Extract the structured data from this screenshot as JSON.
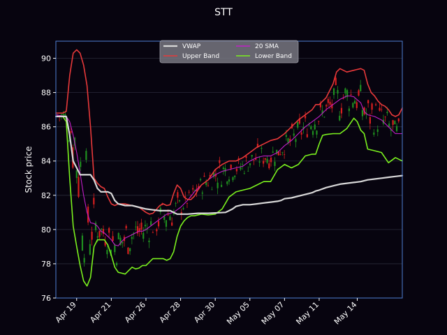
{
  "chart_data": {
    "type": "line",
    "title": "STT",
    "ylabel": "Stock price",
    "xlabel": "",
    "ylim": [
      76,
      91
    ],
    "yticks": [
      76,
      78,
      80,
      82,
      84,
      86,
      88,
      90
    ],
    "grid": "horizontal",
    "legend_position": "top-center",
    "background_color": "#07040f",
    "axes_edge_color": "#4f7fd6",
    "grid_color": "#2a2a3a",
    "candle_up_color": "#1f8f1f",
    "candle_down_color": "#d81f1f",
    "x_range": [
      0,
      100
    ],
    "xtick_positions": [
      6,
      16,
      26,
      36,
      46,
      56,
      66,
      76,
      87
    ],
    "xtick_labels": [
      "Apr 19",
      "Apr 21",
      "Apr 26",
      "Apr 28",
      "Apr 30",
      "May 05",
      "May 07",
      "May 11",
      "May 14"
    ],
    "series": [
      {
        "name": "VWAP",
        "color": "#d8d8d8",
        "width": 2.2,
        "x": [
          0,
          3,
          4,
          5,
          6,
          7,
          9,
          10,
          11,
          12,
          13,
          15,
          16,
          17,
          18,
          20,
          22,
          24,
          26,
          28,
          30,
          33,
          35,
          38,
          41,
          44,
          47,
          49,
          50,
          51,
          52,
          54,
          56,
          58,
          60,
          62,
          64,
          65,
          66,
          68,
          70,
          72,
          74,
          75,
          76,
          78,
          80,
          82,
          84,
          86,
          88,
          90,
          92,
          94,
          96,
          98,
          100
        ],
        "y": [
          86.6,
          86.6,
          85.5,
          84.0,
          83.6,
          83.2,
          83.2,
          83.2,
          82.9,
          82.4,
          82.2,
          82.2,
          82.1,
          81.7,
          81.5,
          81.4,
          81.4,
          81.3,
          81.2,
          81.15,
          81.1,
          81.1,
          80.9,
          80.9,
          80.95,
          80.95,
          80.98,
          81.0,
          81.1,
          81.2,
          81.35,
          81.45,
          81.45,
          81.5,
          81.55,
          81.6,
          81.65,
          81.7,
          81.8,
          81.85,
          81.95,
          82.05,
          82.15,
          82.25,
          82.3,
          82.45,
          82.55,
          82.65,
          82.7,
          82.75,
          82.8,
          82.9,
          82.95,
          83.0,
          83.05,
          83.1,
          83.15
        ]
      },
      {
        "name": "Upper Band",
        "color": "#e8393a",
        "width": 1.6,
        "x": [
          0,
          2,
          3,
          4,
          5,
          6,
          7,
          8,
          9,
          10,
          11,
          12,
          13,
          14,
          15,
          16,
          17,
          18,
          19,
          20,
          22,
          24,
          26,
          27,
          28,
          30,
          31,
          32,
          33,
          34,
          35,
          36,
          37,
          38,
          39,
          40,
          41,
          42,
          44,
          46,
          48,
          50,
          52,
          54,
          56,
          58,
          60,
          62,
          64,
          66,
          68,
          70,
          72,
          74,
          75,
          76,
          78,
          80,
          81,
          82,
          84,
          86,
          88,
          89,
          90,
          91,
          92,
          93,
          94,
          95,
          96,
          97,
          98,
          99,
          100
        ],
        "y": [
          86.8,
          86.8,
          86.9,
          89.0,
          90.3,
          90.5,
          90.3,
          89.6,
          88.4,
          86.0,
          83.0,
          82.7,
          82.5,
          82.4,
          81.9,
          81.5,
          81.4,
          81.5,
          81.5,
          81.5,
          81.4,
          81.3,
          81.0,
          80.9,
          80.95,
          81.4,
          81.5,
          81.4,
          81.45,
          82.1,
          82.6,
          82.4,
          81.9,
          81.75,
          81.75,
          81.95,
          82.3,
          82.6,
          82.9,
          83.5,
          83.8,
          84.0,
          84.0,
          84.2,
          84.5,
          84.8,
          85.0,
          85.2,
          85.3,
          85.6,
          86.0,
          86.4,
          86.7,
          87.0,
          87.3,
          87.3,
          87.7,
          88.5,
          89.2,
          89.4,
          89.2,
          89.3,
          89.4,
          89.3,
          88.5,
          88.0,
          87.8,
          87.5,
          87.3,
          87.2,
          87.0,
          86.7,
          86.6,
          86.7,
          87.1
        ]
      },
      {
        "name": "20 SMA",
        "color": "#c21ec8",
        "width": 1.1,
        "x": [
          0,
          3,
          4,
          5,
          6,
          7,
          8,
          9,
          10,
          11,
          12,
          13,
          14,
          15,
          16,
          17,
          18,
          19,
          20,
          21,
          22,
          23,
          24,
          25,
          26,
          28,
          30,
          32,
          34,
          36,
          38,
          40,
          42,
          44,
          46,
          48,
          50,
          52,
          54,
          56,
          58,
          60,
          62,
          64,
          66,
          68,
          70,
          72,
          74,
          76,
          78,
          80,
          82,
          84,
          85,
          86,
          88,
          89,
          90,
          92,
          94,
          96,
          98,
          100
        ],
        "y": [
          86.7,
          86.6,
          86.3,
          85.5,
          84.5,
          83.3,
          82.0,
          81.0,
          80.4,
          80.35,
          80.2,
          79.9,
          79.8,
          79.6,
          79.4,
          79.1,
          79.05,
          79.3,
          79.5,
          79.6,
          79.7,
          79.8,
          79.9,
          79.9,
          80.0,
          80.3,
          80.6,
          80.9,
          81.0,
          81.3,
          81.7,
          82.2,
          82.6,
          82.9,
          83.2,
          83.4,
          83.5,
          83.6,
          83.7,
          84.0,
          84.2,
          84.3,
          84.3,
          84.5,
          84.9,
          85.2,
          85.6,
          86.0,
          86.3,
          86.6,
          87.0,
          87.3,
          87.6,
          87.8,
          87.8,
          87.75,
          87.4,
          86.9,
          86.7,
          86.6,
          86.4,
          86.0,
          85.6,
          85.6
        ]
      },
      {
        "name": "Lower Band",
        "color": "#7bf21e",
        "width": 1.6,
        "x": [
          0,
          2,
          3,
          4,
          5,
          6,
          7,
          8,
          9,
          10,
          11,
          12,
          13,
          14,
          15,
          16,
          17,
          18,
          19,
          20,
          21,
          22,
          23,
          24,
          25,
          26,
          28,
          30,
          31,
          32,
          33,
          34,
          35,
          36,
          37,
          38,
          39,
          40,
          42,
          44,
          46,
          48,
          50,
          52,
          54,
          56,
          58,
          60,
          62,
          64,
          66,
          68,
          70,
          72,
          74,
          75,
          76,
          77,
          78,
          80,
          82,
          84,
          86,
          87,
          88,
          89,
          90,
          92,
          94,
          96,
          98,
          100
        ],
        "y": [
          86.6,
          86.6,
          86.3,
          83.0,
          80.2,
          79.0,
          77.9,
          77.0,
          76.7,
          77.2,
          79.0,
          79.4,
          79.4,
          79.4,
          79.1,
          78.5,
          77.8,
          77.5,
          77.45,
          77.4,
          77.6,
          77.8,
          77.7,
          77.75,
          77.9,
          77.9,
          78.3,
          78.3,
          78.3,
          78.2,
          78.3,
          78.7,
          79.6,
          80.2,
          80.5,
          80.7,
          80.8,
          80.8,
          80.9,
          80.85,
          80.9,
          81.2,
          81.9,
          82.2,
          82.3,
          82.4,
          82.6,
          82.8,
          82.8,
          83.5,
          83.8,
          83.6,
          83.8,
          84.3,
          84.4,
          84.4,
          85.0,
          85.5,
          85.55,
          85.6,
          85.6,
          85.9,
          86.5,
          86.3,
          85.8,
          85.6,
          84.7,
          84.6,
          84.5,
          83.9,
          84.2,
          84.0
        ]
      }
    ]
  }
}
